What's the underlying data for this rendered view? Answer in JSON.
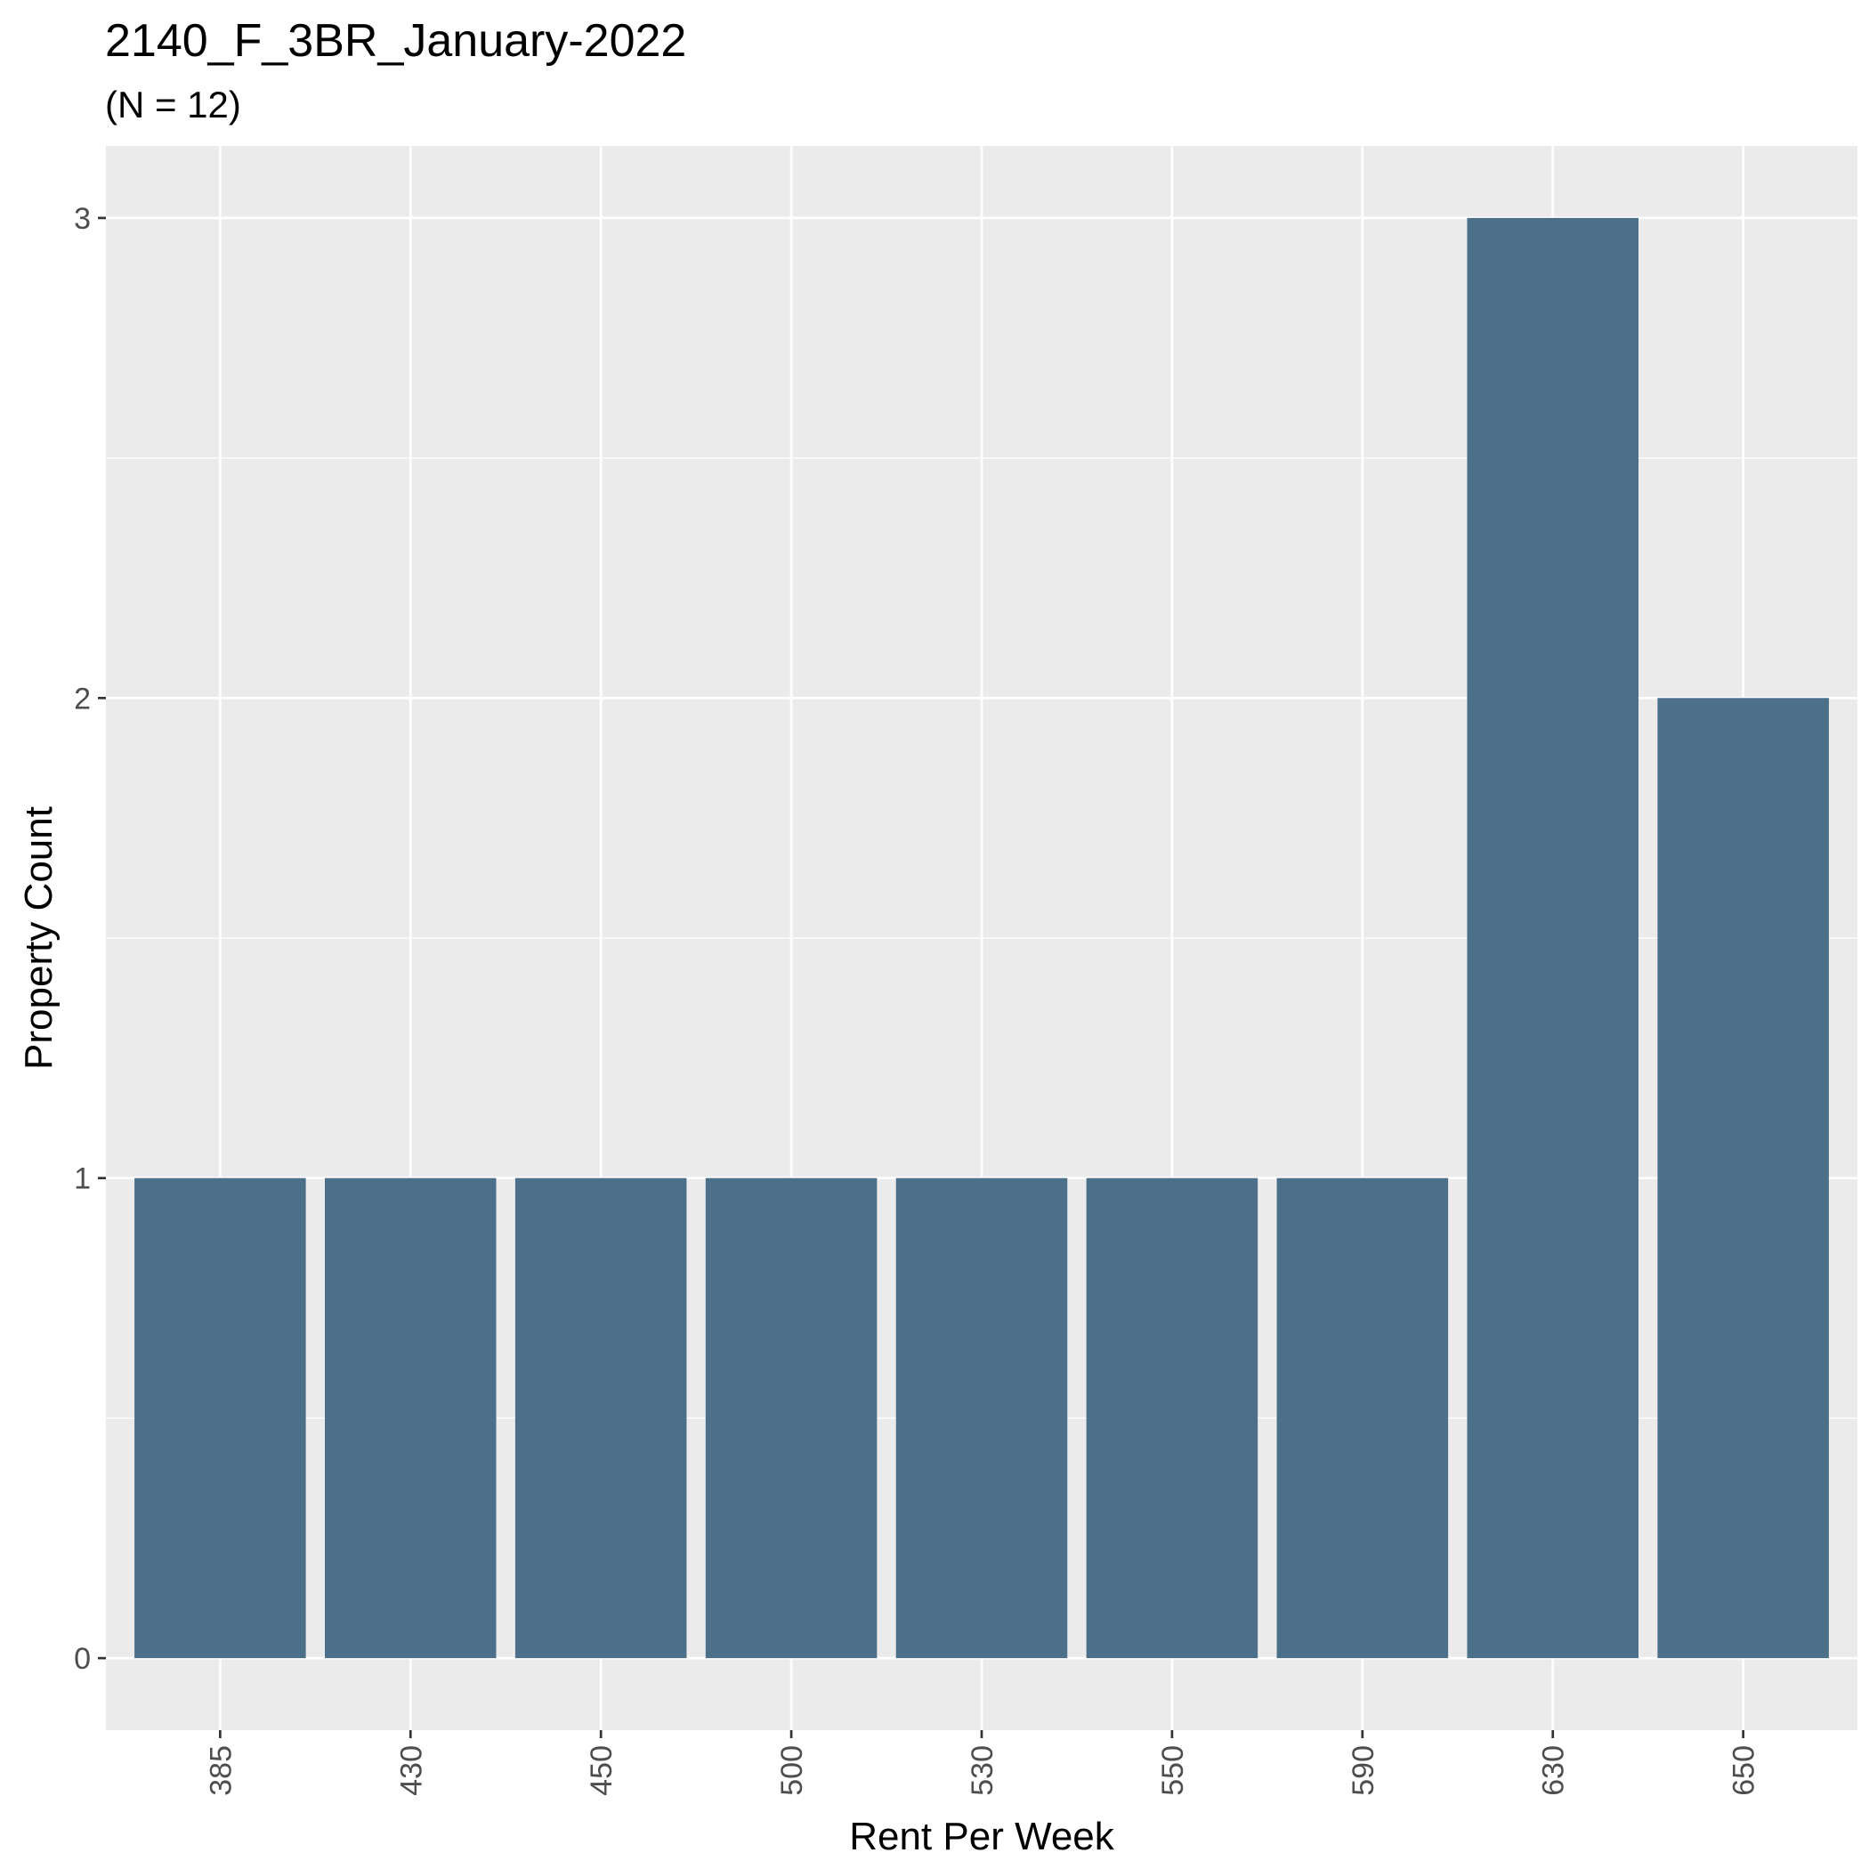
{
  "chart_data": {
    "type": "bar",
    "title": "2140_F_3BR_January-2022",
    "subtitle": "(N = 12)",
    "xlabel": "Rent Per Week",
    "ylabel": "Property Count",
    "categories": [
      "385",
      "430",
      "450",
      "500",
      "530",
      "550",
      "590",
      "630",
      "650"
    ],
    "values": [
      1,
      1,
      1,
      1,
      1,
      1,
      1,
      3,
      2
    ],
    "yticks": [
      "0",
      "1",
      "2",
      "3"
    ],
    "ylim": [
      -0.15,
      3.15
    ],
    "grid": true,
    "legend": "none",
    "colors": {
      "bar": "#4c6f8a",
      "panel": "#ebebeb",
      "grid": "#ffffff",
      "tick_text": "#4d4d4d",
      "tick_mark": "#333333"
    }
  }
}
